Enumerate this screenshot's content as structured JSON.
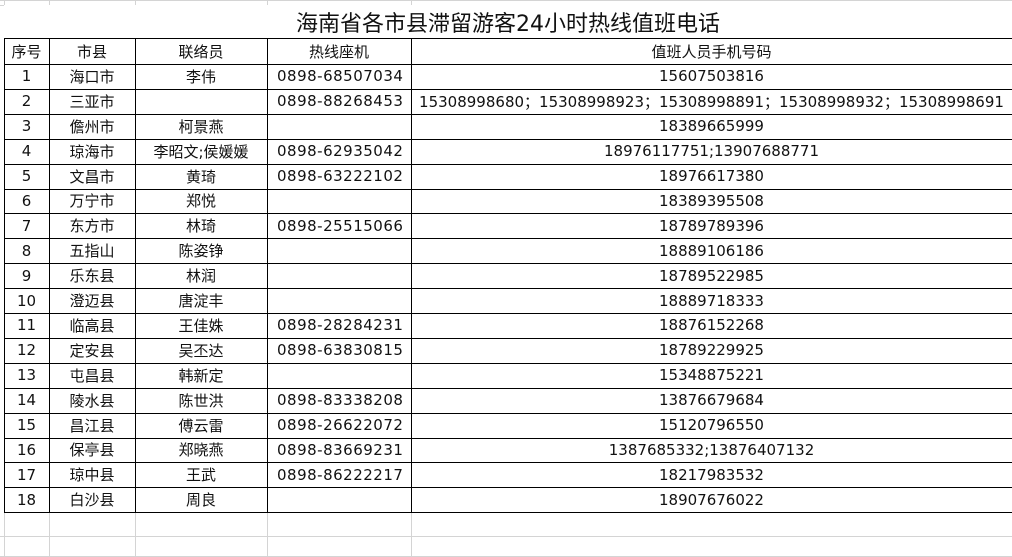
{
  "title": "海南省各市县滞留游客24小时热线值班电话",
  "header": [
    "序号",
    "市县",
    "联络员",
    "热线座机",
    "值班人员手机号码"
  ],
  "rows": [
    [
      "1",
      "海口市",
      "李伟",
      "0898-68507034",
      "15607503816"
    ],
    [
      "2",
      "三亚市",
      null,
      "0898-88268453",
      "15308998680；15308998923；15308998891；15308998932；15308998691"
    ],
    [
      "3",
      "儋州市",
      "柯景燕",
      null,
      "18389665999"
    ],
    [
      "4",
      "琼海市",
      "李昭文;侯媛媛",
      "0898-62935042",
      "18976117751;13907688771"
    ],
    [
      "5",
      "文昌市",
      "黄琦",
      "0898-63222102",
      "18976617380"
    ],
    [
      "6",
      "万宁市",
      "郑悦",
      null,
      "18389395508"
    ],
    [
      "7",
      "东方市",
      "林琦",
      "0898-25515066",
      "18789789396"
    ],
    [
      "8",
      "五指山",
      "陈姿铮",
      null,
      "18889106186"
    ],
    [
      "9",
      "乐东县",
      "林润",
      null,
      "18789522985"
    ],
    [
      "10",
      "澄迈县",
      "唐淀丰",
      null,
      "18889718333"
    ],
    [
      "11",
      "临高县",
      "王佳姝",
      "0898-28284231",
      "18876152268"
    ],
    [
      "12",
      "定安县",
      "吴丕达",
      "0898-63830815",
      "18789229925"
    ],
    [
      "13",
      "屯昌县",
      "韩新定",
      null,
      "15348875221"
    ],
    [
      "14",
      "陵水县",
      "陈世洪",
      "0898-83338208",
      "13876679684"
    ],
    [
      "15",
      "昌江县",
      "傅云雷",
      "0898-26622072",
      "15120796550"
    ],
    [
      "16",
      "保亭县",
      "郑晓燕",
      "0898-83669231",
      "1387685332;13876407132"
    ],
    [
      "17",
      "琼中县",
      "王武",
      "0898-86222217",
      "18217983532"
    ],
    [
      "18",
      "白沙县",
      "周良",
      null,
      "18907676022"
    ]
  ]
}
